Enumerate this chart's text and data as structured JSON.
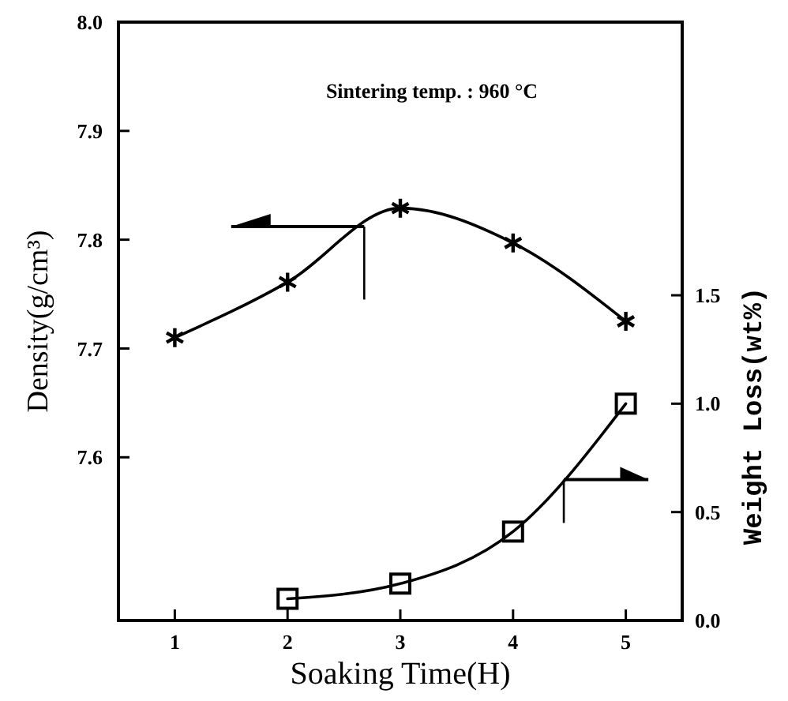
{
  "chart_data": {
    "type": "line",
    "xlabel": "Soaking Time(H)",
    "ylabel": "Density(g/cm³)",
    "y2label": "Weight Loss(wt%)",
    "annotations": [
      "Sintering temp. : 960 °C"
    ],
    "x": [
      1,
      2,
      3,
      4,
      5
    ],
    "series": [
      {
        "color": "#000000",
        "marker": "cross",
        "values": [
          7.71,
          7.761,
          7.829,
          7.797,
          7.725
        ]
      },
      {
        "color": "#000000",
        "marker": "square",
        "axis": "y2",
        "x": [
          2,
          3,
          4,
          5
        ],
        "values": [
          0.1,
          0.17,
          0.41,
          1.0
        ]
      }
    ],
    "xlim": [
      0.5,
      5.5
    ],
    "xticks": [
      1,
      2,
      3,
      4,
      5
    ],
    "ylim": [
      7.45,
      8.0
    ],
    "yticks": [
      {
        "value": 7.6,
        "label": "7.6"
      },
      {
        "value": 7.7,
        "label": "7.7"
      },
      {
        "value": 7.8,
        "label": "7.8"
      },
      {
        "value": 7.9,
        "label": "7.9"
      },
      {
        "value": 8.0,
        "label": "8.0"
      }
    ],
    "y2lim": [
      0,
      2.76
    ],
    "y2ticks": [
      {
        "value": 0,
        "label": "0.0"
      },
      {
        "value": 0.5,
        "label": "0.5"
      },
      {
        "value": 1,
        "label": "1.0"
      },
      {
        "value": 1.5,
        "label": "1.5"
      }
    ],
    "grid": false,
    "line_style": "solid"
  }
}
